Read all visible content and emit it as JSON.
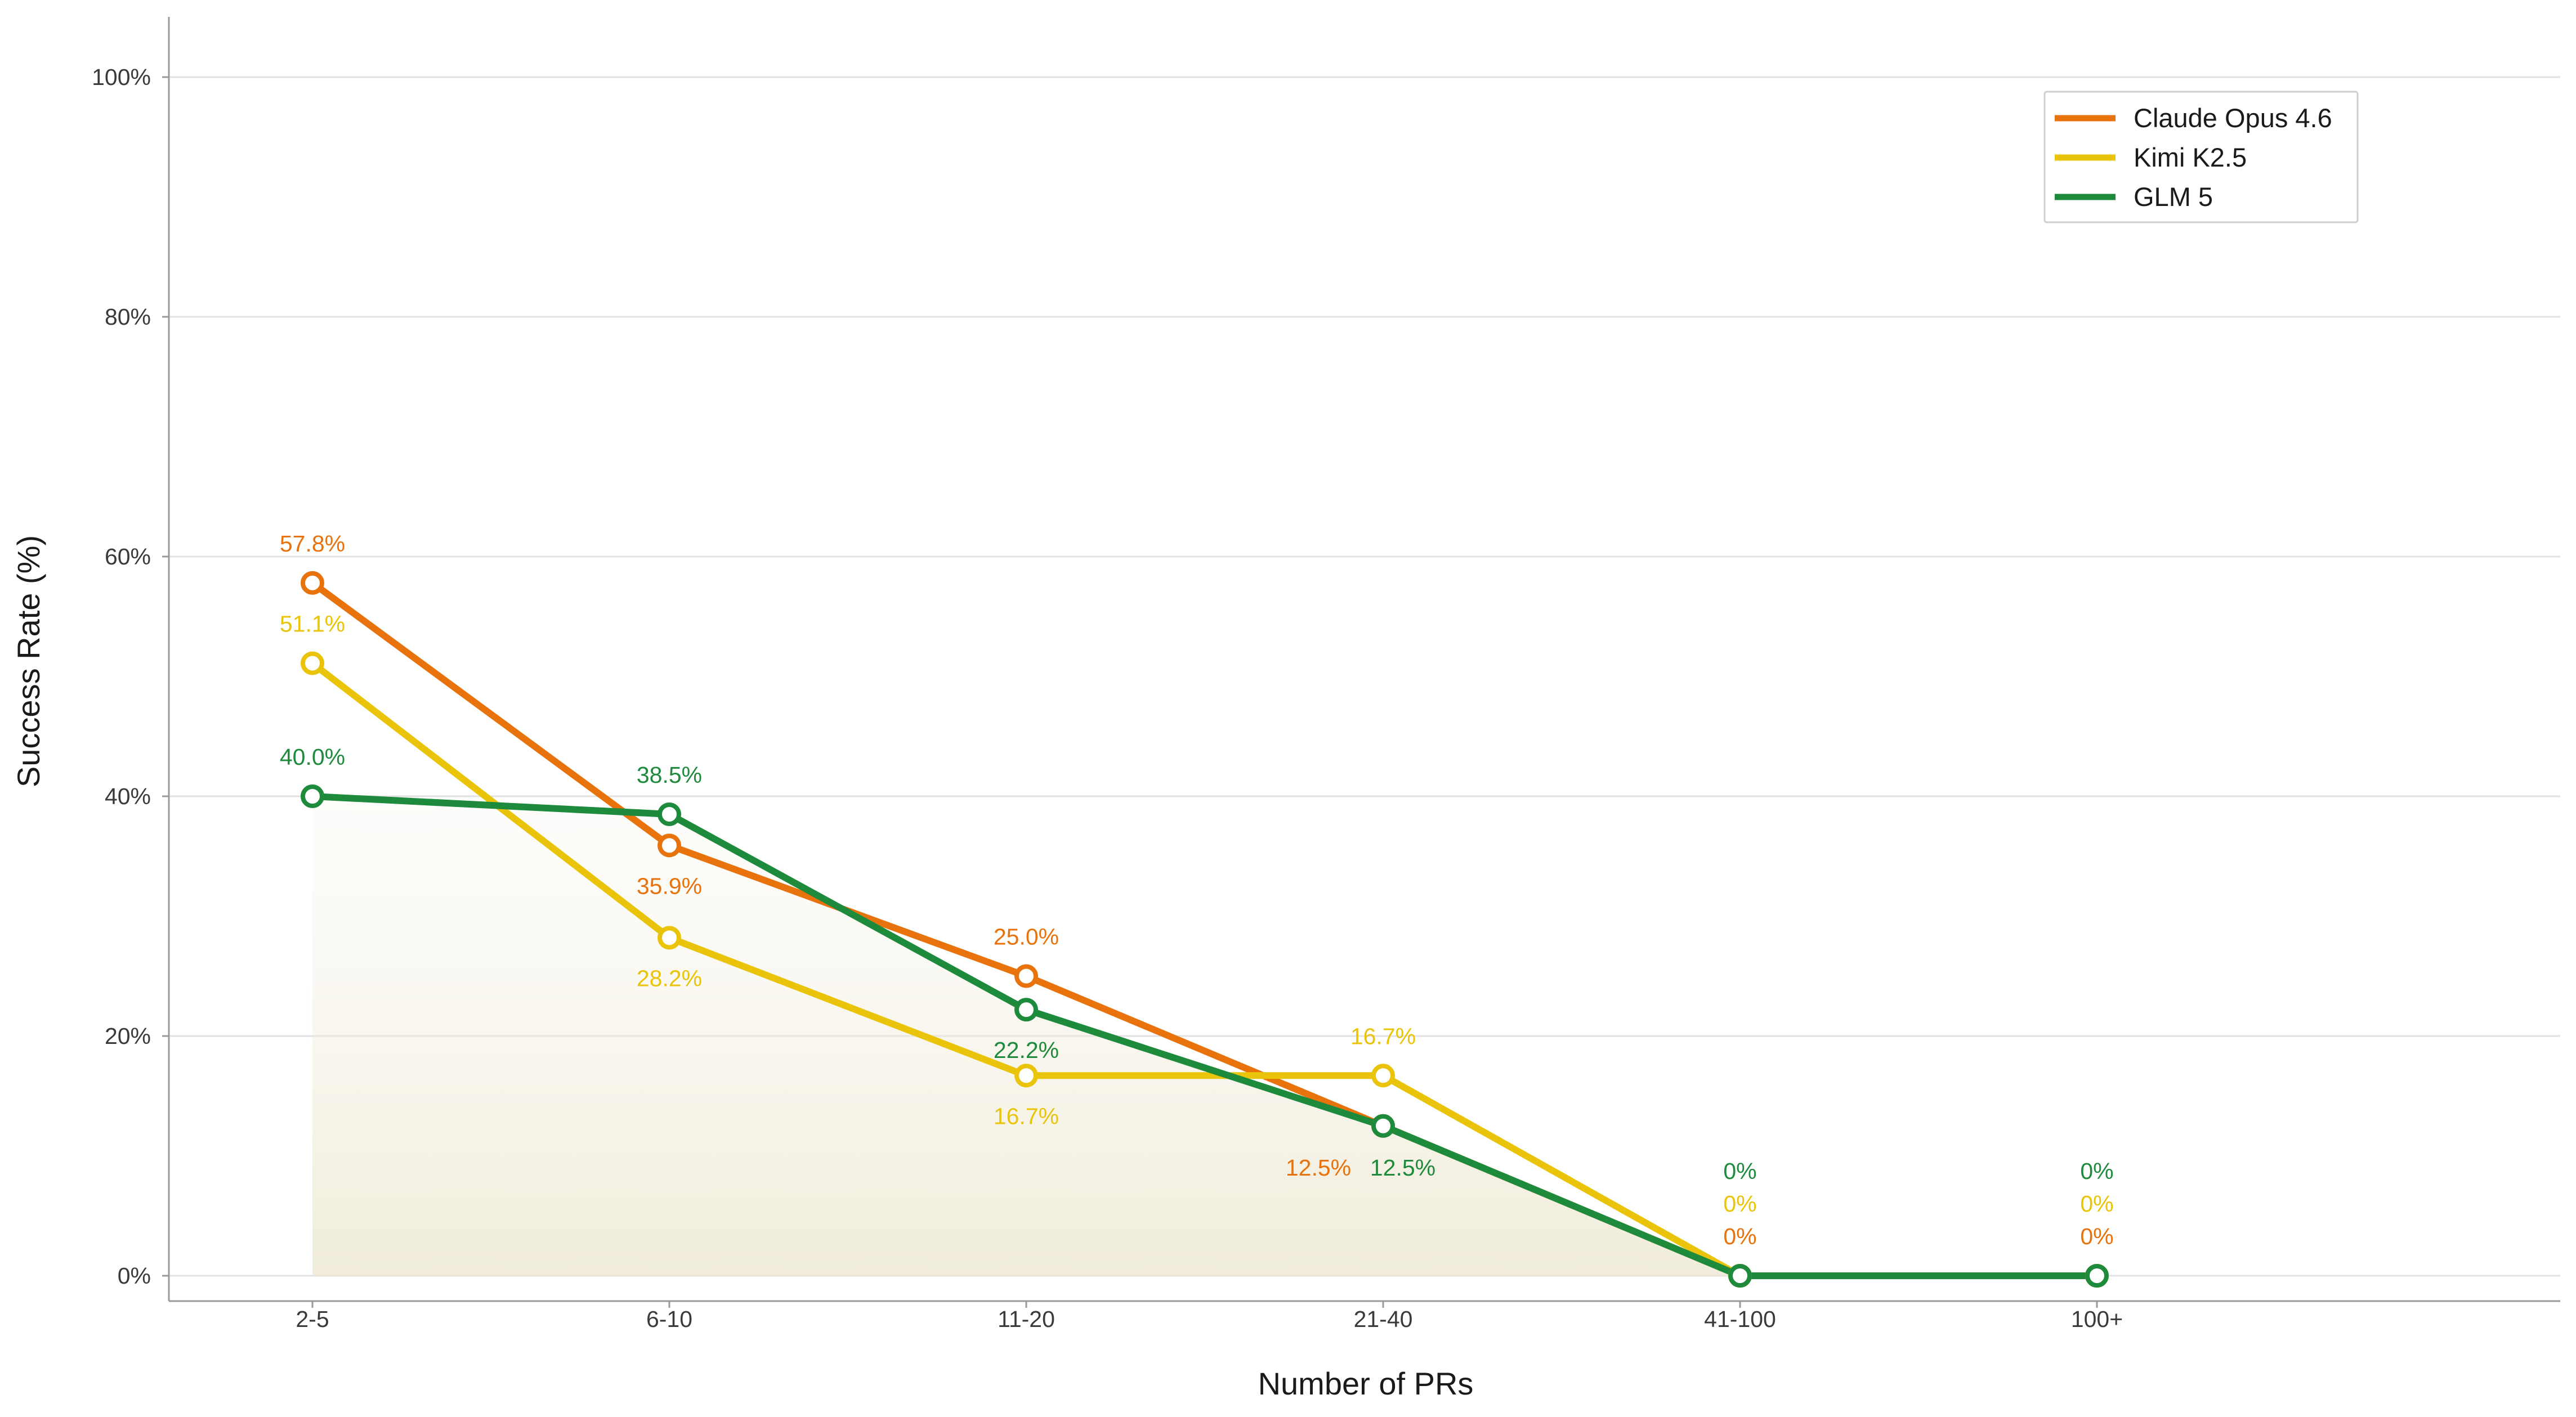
{
  "chart_data": {
    "type": "line",
    "xlabel": "Number of PRs",
    "ylabel": "Success Rate (%)",
    "categories": [
      "2-5",
      "6-10",
      "11-20",
      "21-40",
      "41-100",
      "100+"
    ],
    "ylim": [
      0,
      100
    ],
    "yticks": [
      0,
      20,
      40,
      60,
      80,
      100
    ],
    "ytick_labels": [
      "0%",
      "20%",
      "40%",
      "60%",
      "80%",
      "100%"
    ],
    "grid": "horizontal",
    "legend_position": "top-right",
    "series": [
      {
        "name": "Claude Opus 4.6",
        "color": "#E8720C",
        "values": [
          57.8,
          35.9,
          25.0,
          12.5,
          0,
          0
        ],
        "labels": [
          "57.8%",
          "35.9%",
          "25.0%",
          "12.5%",
          "0%",
          "0%"
        ]
      },
      {
        "name": "Kimi K2.5",
        "color": "#E9C40A",
        "values": [
          51.1,
          28.2,
          16.7,
          16.7,
          0,
          0
        ],
        "labels": [
          "51.1%",
          "28.2%",
          "16.7%",
          "16.7%",
          "0%",
          "0%"
        ]
      },
      {
        "name": "GLM 5",
        "color": "#1E8A3C",
        "values": [
          40.0,
          38.5,
          22.2,
          12.5,
          0,
          0
        ],
        "labels": [
          "40.0%",
          "38.5%",
          "22.2%",
          "12.5%",
          "0%",
          "0%"
        ]
      }
    ]
  }
}
